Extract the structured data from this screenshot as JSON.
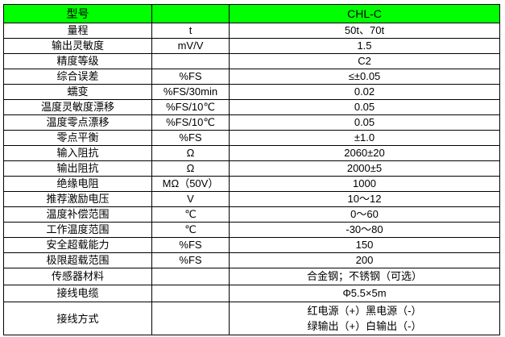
{
  "header": {
    "label": "型号",
    "unit": "",
    "value": "CHL-C"
  },
  "header_color": "#00ff00",
  "rows": [
    {
      "label": "量程",
      "unit": "t",
      "value": "50t、70t"
    },
    {
      "label": "输出灵敏度",
      "unit": "mV/V",
      "value": "1.5"
    },
    {
      "label": "精度等级",
      "unit": "",
      "value": "C2"
    },
    {
      "label": "综合误差",
      "unit": "%FS",
      "value": "≤±0.05"
    },
    {
      "label": "蠕变",
      "unit": "%FS/30min",
      "value": "0.02"
    },
    {
      "label": "温度灵敏度漂移",
      "unit": "%FS/10℃",
      "value": "0.05"
    },
    {
      "label": "温度零点漂移",
      "unit": "%FS/10℃",
      "value": "0.05"
    },
    {
      "label": "零点平衡",
      "unit": "%FS",
      "value": "±1.0"
    },
    {
      "label": "输入阻抗",
      "unit": "Ω",
      "value": "2060±20"
    },
    {
      "label": "输出阻抗",
      "unit": "Ω",
      "value": "2000±5"
    },
    {
      "label": "绝缘电阻",
      "unit": "MΩ（50V）",
      "value": "1000"
    },
    {
      "label": "推荐激励电压",
      "unit": "V",
      "value": "10～12"
    },
    {
      "label": "温度补偿范围",
      "unit": "℃",
      "value": "0～60"
    },
    {
      "label": "工作温度范围",
      "unit": "℃",
      "value": "-30～80"
    },
    {
      "label": "安全超载能力",
      "unit": "%FS",
      "value": "150"
    },
    {
      "label": "极限超载范围",
      "unit": "%FS",
      "value": "200"
    },
    {
      "label": "传感器材料",
      "unit": "",
      "value": "合金钢；不锈钢（可选）"
    },
    {
      "label": "接线电缆",
      "unit": "",
      "value": "Φ5.5×5m"
    },
    {
      "label": "接线方式",
      "unit": "",
      "value": "红电源（+）黑电源（-）",
      "value2": "绿输出（+）白输出（-）"
    }
  ]
}
